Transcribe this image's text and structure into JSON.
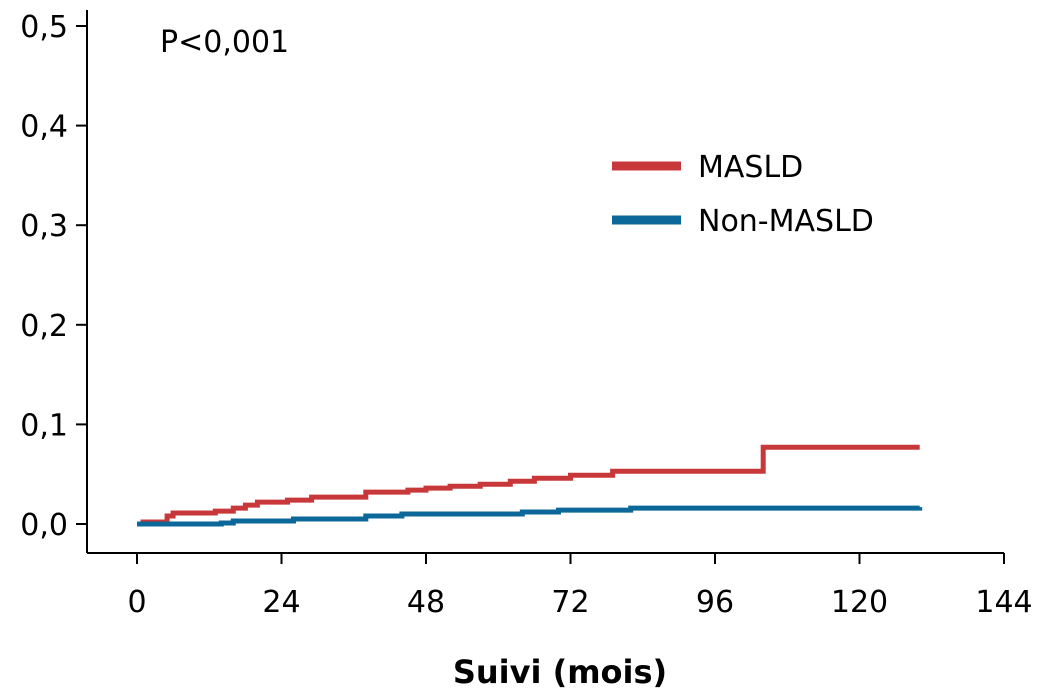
{
  "chart_data": {
    "type": "line",
    "step": true,
    "title": "",
    "xlabel": "Suivi (mois)",
    "ylabel": "",
    "xlim": [
      0,
      144
    ],
    "ylim": [
      0,
      0.5
    ],
    "xticks": [
      0,
      24,
      48,
      72,
      96,
      120,
      144
    ],
    "xtick_labels": [
      "0",
      "24",
      "48",
      "72",
      "96",
      "120",
      "144"
    ],
    "yticks": [
      0,
      0.1,
      0.2,
      0.3,
      0.4,
      0.5
    ],
    "ytick_labels": [
      "0,0",
      "0,1",
      "0,2",
      "0,3",
      "0,4",
      "0,5"
    ],
    "grid": false,
    "legend_position": "upper-right",
    "annotation": "P<0,001",
    "series": [
      {
        "name": "MASLD",
        "color": "#c8383a",
        "x": [
          0,
          1,
          5,
          6,
          13,
          16,
          18,
          20,
          25,
          29,
          38,
          45,
          48,
          52,
          57,
          62,
          66,
          72,
          79,
          104,
          130
        ],
        "y": [
          0,
          0.002,
          0.008,
          0.011,
          0.013,
          0.016,
          0.019,
          0.022,
          0.024,
          0.027,
          0.032,
          0.034,
          0.036,
          0.038,
          0.04,
          0.043,
          0.046,
          0.049,
          0.053,
          0.077,
          0.077
        ]
      },
      {
        "name": "Non-MASLD",
        "color": "#0b6899",
        "x": [
          0,
          14,
          16,
          26,
          38,
          44,
          55,
          64,
          70,
          82,
          130
        ],
        "y": [
          0,
          0.001,
          0.003,
          0.005,
          0.008,
          0.01,
          0.01,
          0.012,
          0.014,
          0.016,
          0.017
        ]
      }
    ]
  }
}
